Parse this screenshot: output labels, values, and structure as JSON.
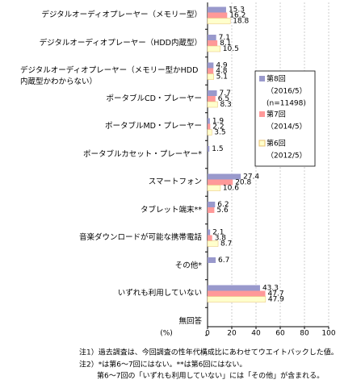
{
  "chart_data": {
    "type": "hbar",
    "categories": [
      "デジタルオーディオプレーヤー（メモリー型）",
      "デジタルオーディオプレーヤー（HDD内蔵型）",
      "デジタルオーディオプレーヤー（メモリー型かHDD内蔵型かわからない）",
      "ポータブルCD・プレーヤー",
      "ポータブルMD・プレーヤー",
      "ポータブルカセット・プレーヤー*",
      "スマートフォン",
      "タブレット端末**",
      "音楽ダウンロードが可能な携帯電話",
      "その他*",
      "いずれも利用していない",
      "無回答"
    ],
    "series": [
      {
        "name": "第8回",
        "period": "（2016/5）",
        "sample": "(n=11498)",
        "color": "#9999cc",
        "values": [
          15.3,
          7.1,
          4.9,
          7.7,
          1.9,
          1.5,
          27.4,
          6.2,
          2.1,
          6.7,
          43.3,
          null
        ]
      },
      {
        "name": "第7回",
        "period": "（2014/5）",
        "color": "#ff9999",
        "values": [
          16.2,
          8.1,
          4.8,
          6.5,
          2.2,
          null,
          20.8,
          5.6,
          3.8,
          null,
          47.7,
          null
        ]
      },
      {
        "name": "第6回",
        "period": "（2012/5）",
        "color": "#ffffcc",
        "values": [
          18.8,
          10.5,
          5.1,
          8.3,
          3.5,
          null,
          10.6,
          null,
          8.7,
          null,
          47.9,
          null
        ]
      }
    ],
    "xlim": [
      0,
      100
    ],
    "xticks": [
      0,
      20,
      40,
      60,
      80,
      100
    ],
    "x_unit": "(%)",
    "grid": true,
    "notes": [
      "注1）過去調査は、今回調査の性年代構成比にあわせてウエイトバックした値。",
      "注2）*は第6～7回にはない。**は第6回にはない。",
      "第6～7回の「いずれも利用していない」には「その他」が含まれる。"
    ]
  }
}
